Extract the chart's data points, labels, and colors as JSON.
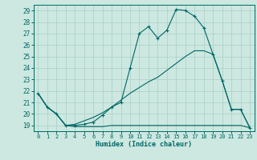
{
  "xlabel": "Humidex (Indice chaleur)",
  "xlim": [
    -0.5,
    23.5
  ],
  "ylim": [
    18.5,
    29.5
  ],
  "xticks": [
    0,
    1,
    2,
    3,
    4,
    5,
    6,
    7,
    8,
    9,
    10,
    11,
    12,
    13,
    14,
    15,
    16,
    17,
    18,
    19,
    20,
    21,
    22,
    23
  ],
  "yticks": [
    19,
    20,
    21,
    22,
    23,
    24,
    25,
    26,
    27,
    28,
    29
  ],
  "bg_color": "#cce8e0",
  "grid_color": "#aacec6",
  "line_color": "#006666",
  "line1_x": [
    0,
    1,
    2,
    3,
    4,
    5,
    6,
    7,
    8,
    9,
    10,
    11,
    12,
    13,
    14,
    15,
    16,
    17,
    18,
    19,
    20,
    21,
    22,
    23
  ],
  "line1_y": [
    21.8,
    20.6,
    20.0,
    19.0,
    18.9,
    18.9,
    18.9,
    18.9,
    19.0,
    19.0,
    19.0,
    19.0,
    19.0,
    19.0,
    19.0,
    19.0,
    19.0,
    19.0,
    19.0,
    19.0,
    19.0,
    19.0,
    19.0,
    18.8
  ],
  "line2_x": [
    0,
    1,
    2,
    3,
    4,
    5,
    6,
    7,
    8,
    9,
    10,
    11,
    12,
    13,
    14,
    15,
    16,
    17,
    18,
    19,
    20,
    21,
    22,
    23
  ],
  "line2_y": [
    21.8,
    20.6,
    20.0,
    19.0,
    19.0,
    19.1,
    19.3,
    19.9,
    20.6,
    21.0,
    24.0,
    27.0,
    27.6,
    26.6,
    27.3,
    29.1,
    29.0,
    28.5,
    27.5,
    25.2,
    22.9,
    20.4,
    20.4,
    18.8
  ],
  "line3_x": [
    0,
    1,
    2,
    3,
    4,
    5,
    6,
    7,
    8,
    9,
    10,
    11,
    12,
    13,
    14,
    15,
    16,
    17,
    18,
    19,
    20,
    21,
    22,
    23
  ],
  "line3_y": [
    21.8,
    20.6,
    20.0,
    19.0,
    19.1,
    19.4,
    19.7,
    20.1,
    20.6,
    21.2,
    21.8,
    22.3,
    22.8,
    23.2,
    23.8,
    24.4,
    25.0,
    25.5,
    25.5,
    25.2,
    22.9,
    20.4,
    20.4,
    18.8
  ]
}
